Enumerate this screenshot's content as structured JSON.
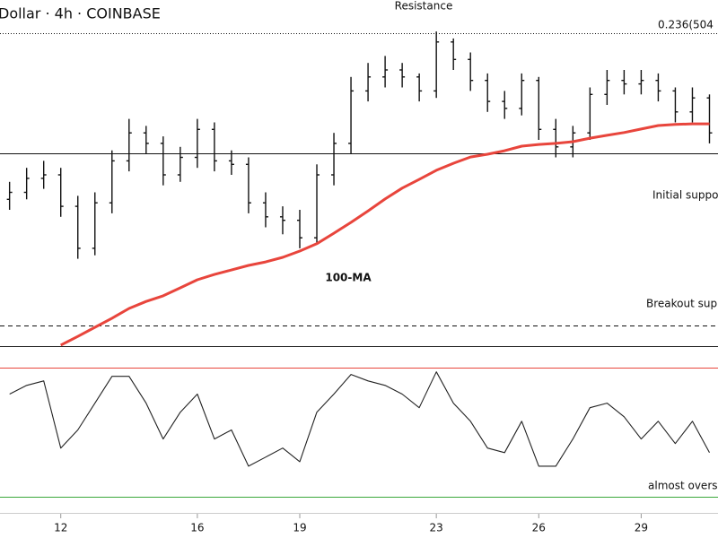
{
  "chart_data": [
    {
      "type": "ohlc",
      "title": "Dollar · 4h · COINBASE",
      "x": [
        10.5,
        11,
        11.5,
        12,
        12.5,
        13,
        13.5,
        14,
        14.5,
        15,
        15.5,
        16,
        16.5,
        17,
        17.5,
        18,
        18.5,
        19,
        19.5,
        20,
        20.5,
        21,
        21.5,
        22,
        22.5,
        23,
        23.5,
        24,
        24.5,
        25,
        25.5,
        26,
        26.5,
        27,
        27.5,
        28,
        28.5,
        29,
        29.5,
        30,
        30.5,
        31
      ],
      "open": [
        43,
        45,
        49,
        50,
        41,
        29,
        42,
        54,
        62,
        59,
        50,
        55,
        63,
        54,
        53,
        42,
        38,
        37,
        32,
        50,
        59,
        74,
        78,
        80,
        78,
        74,
        88,
        83,
        77,
        71,
        69,
        77,
        63,
        58,
        62,
        73,
        77,
        76,
        77,
        74,
        68,
        72
      ],
      "high": [
        48,
        52,
        54,
        52,
        44,
        45,
        57,
        66,
        64,
        61,
        58,
        66,
        65,
        57,
        55,
        45,
        41,
        40,
        53,
        62,
        78,
        82,
        84,
        82,
        79,
        91,
        89,
        85,
        79,
        74,
        79,
        78,
        66,
        64,
        75,
        80,
        80,
        80,
        79,
        75,
        75,
        73
      ],
      "low": [
        40,
        43,
        46,
        38,
        26,
        27,
        39,
        51,
        56,
        47,
        48,
        52,
        51,
        50,
        39,
        35,
        33,
        29,
        30,
        47,
        56,
        71,
        75,
        75,
        71,
        72,
        80,
        74,
        68,
        66,
        67,
        60,
        55,
        55,
        60,
        70,
        73,
        73,
        71,
        65,
        65,
        59
      ],
      "close": [
        45,
        49,
        50,
        41,
        29,
        42,
        54,
        62,
        59,
        50,
        55,
        63,
        54,
        53,
        42,
        38,
        37,
        32,
        50,
        59,
        74,
        78,
        80,
        78,
        74,
        88,
        83,
        77,
        71,
        69,
        77,
        63,
        58,
        62,
        73,
        77,
        76,
        77,
        74,
        68,
        72,
        62
      ],
      "color": "#111111",
      "ma": {
        "name": "100-MA",
        "color": "#e8453c",
        "values": [
          null,
          null,
          null,
          1.3,
          3.8,
          6.4,
          9.0,
          11.8,
          13.8,
          15.4,
          17.7,
          20,
          21.5,
          22.8,
          24.1,
          25.1,
          26.4,
          28.2,
          30.3,
          33.3,
          36.4,
          39.7,
          43.1,
          46.2,
          48.7,
          51.3,
          53.3,
          55.1,
          55.9,
          56.9,
          58.2,
          58.7,
          59,
          59.5,
          60.5,
          61.3,
          62.1,
          63.1,
          64.1,
          64.4,
          64.6,
          64.6
        ]
      },
      "xlim": [
        10.22,
        31.25
      ],
      "ylim": [
        0,
        100
      ],
      "levels": [
        {
          "value": 90.5,
          "style": "dotted"
        },
        {
          "value": 56.2,
          "style": "solid"
        },
        {
          "value": 6.9,
          "style": "dashed"
        }
      ],
      "annotations": {
        "resistance": "Resistance",
        "fib": "0.236(504",
        "initial_support": "Initial suppo",
        "breakout_support": "Breakout supp"
      }
    },
    {
      "type": "line",
      "values": [
        61.7,
        64.4,
        65.8,
        45,
        50.6,
        58.9,
        67.2,
        67.2,
        58.9,
        47.8,
        56.1,
        61.7,
        47.8,
        50.6,
        39.4,
        42.2,
        45,
        40.8,
        56.1,
        61.7,
        67.8,
        65.8,
        64.4,
        61.7,
        57.5,
        68.6,
        58.9,
        53.3,
        45,
        43.6,
        53.3,
        39.4,
        39.4,
        47.8,
        57.5,
        58.9,
        54.7,
        47.8,
        53.3,
        46.4,
        53.3,
        43.6
      ],
      "color": "#222222",
      "ylim": [
        25.5,
        76
      ],
      "levels": [
        {
          "value": 70,
          "color": "#e8453c"
        },
        {
          "value": 30,
          "color": "#3aa83a"
        }
      ],
      "xticks": [
        12,
        16,
        19,
        23,
        26,
        29
      ],
      "annotations": {
        "oversold": "almost overs"
      }
    }
  ]
}
